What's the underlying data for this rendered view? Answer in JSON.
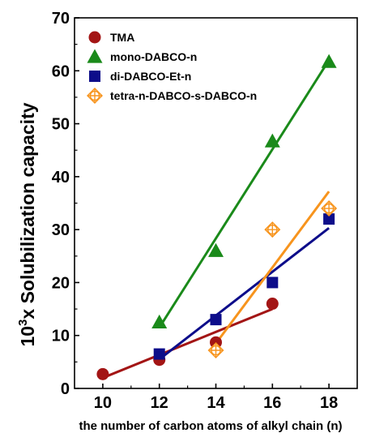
{
  "chart_data": {
    "type": "scatter",
    "title": "",
    "xlabel": "the number of carbon atoms of alkyl chain (n)",
    "ylabel_prefix": "10",
    "ylabel_sup": "3",
    "ylabel_rest": "x Solubilization capacity",
    "xlim": [
      9,
      19
    ],
    "ylim": [
      0,
      70
    ],
    "xticks": [
      10,
      12,
      14,
      16,
      18
    ],
    "yticks": [
      0,
      10,
      20,
      30,
      40,
      50,
      60,
      70
    ],
    "grid": false,
    "legend_position": "top-left",
    "series": [
      {
        "name": "TMA",
        "marker": "circle",
        "color": "#a31515",
        "x": [
          10,
          12,
          14,
          16
        ],
        "y": [
          2.7,
          5.4,
          8.7,
          16.0
        ],
        "fit": [
          [
            10,
            2.0
          ],
          [
            16,
            15.0
          ]
        ]
      },
      {
        "name": "mono-DABCO-n",
        "marker": "triangle",
        "color": "#1a8a1a",
        "x": [
          12,
          14,
          16,
          18
        ],
        "y": [
          12.5,
          26.0,
          46.7,
          61.7
        ],
        "fit": [
          [
            12,
            11.5
          ],
          [
            18,
            62.0
          ]
        ]
      },
      {
        "name": "di-DABCO-Et-n",
        "marker": "square",
        "color": "#0d0d8a",
        "x": [
          12,
          14,
          16,
          18
        ],
        "y": [
          6.5,
          13.0,
          20.0,
          32.0
        ],
        "fit": [
          [
            12,
            5.5
          ],
          [
            18,
            30.3
          ]
        ]
      },
      {
        "name": "tetra-n-DABCO-s-DABCO-n",
        "marker": "crossed-diamond",
        "color": "#f7941d",
        "x": [
          14,
          16,
          18
        ],
        "y": [
          7.2,
          30.0,
          34.0
        ],
        "fit": [
          [
            14,
            8.5
          ],
          [
            18,
            37.2
          ]
        ]
      }
    ]
  }
}
